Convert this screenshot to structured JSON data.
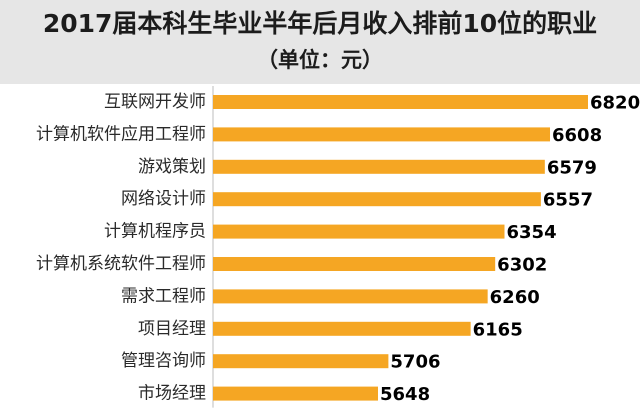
{
  "chart_data": {
    "type": "bar",
    "orientation": "horizontal",
    "title": "2017届本科生毕业半年后月收入排前10位的职业",
    "subtitle": "（单位：元）",
    "categories": [
      "互联网开发师",
      "计算机软件应用工程师",
      "游戏策划",
      "网络设计师",
      "计算机程序员",
      "计算机系统软件工程师",
      "需求工程师",
      "项目经理",
      "管理咨询师",
      "市场经理"
    ],
    "values": [
      6820,
      6608,
      6579,
      6557,
      6354,
      6302,
      6260,
      6165,
      5706,
      5648
    ],
    "value_labels": [
      "6820",
      "6608",
      "6579",
      "6557",
      "6354",
      "6302",
      "6260",
      "6165",
      "5706",
      "5648"
    ],
    "bar_color": "#f5a623",
    "header_bg": "#e6e6e6",
    "grid": false,
    "legend": "none"
  }
}
